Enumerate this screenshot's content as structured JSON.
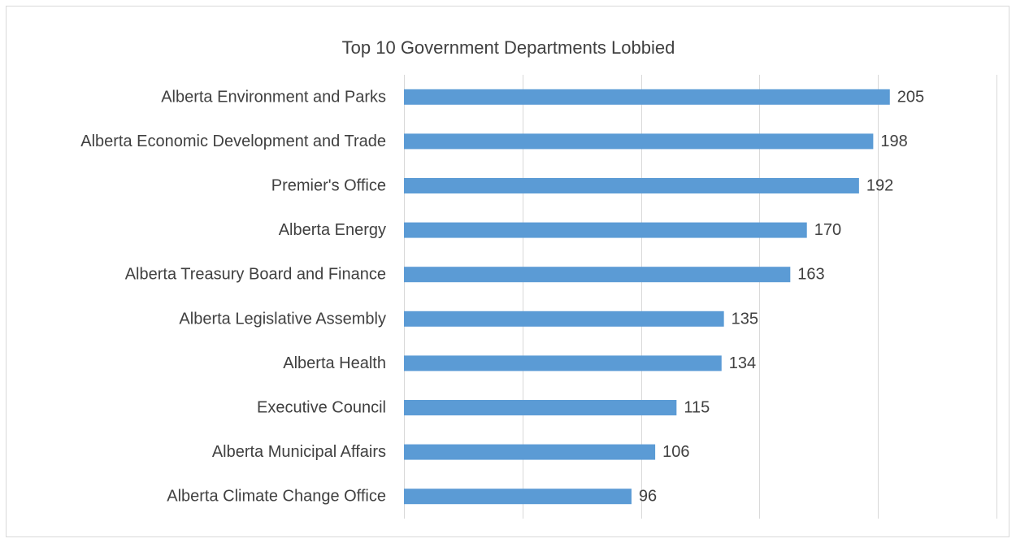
{
  "chart_data": {
    "type": "bar",
    "orientation": "horizontal",
    "title": "Top 10 Government Departments Lobbied",
    "categories": [
      "Alberta Environment and Parks",
      "Alberta Economic Development and Trade",
      "Premier's Office",
      "Alberta Energy",
      "Alberta Treasury Board and Finance",
      "Alberta Legislative Assembly",
      "Alberta Health",
      "Executive Council",
      "Alberta Municipal Affairs",
      "Alberta Climate Change Office"
    ],
    "values": [
      205,
      198,
      192,
      170,
      163,
      135,
      134,
      115,
      106,
      96
    ],
    "xlim": [
      0,
      250
    ],
    "grid": true,
    "bar_color": "#5b9bd5",
    "data_labels": true
  }
}
